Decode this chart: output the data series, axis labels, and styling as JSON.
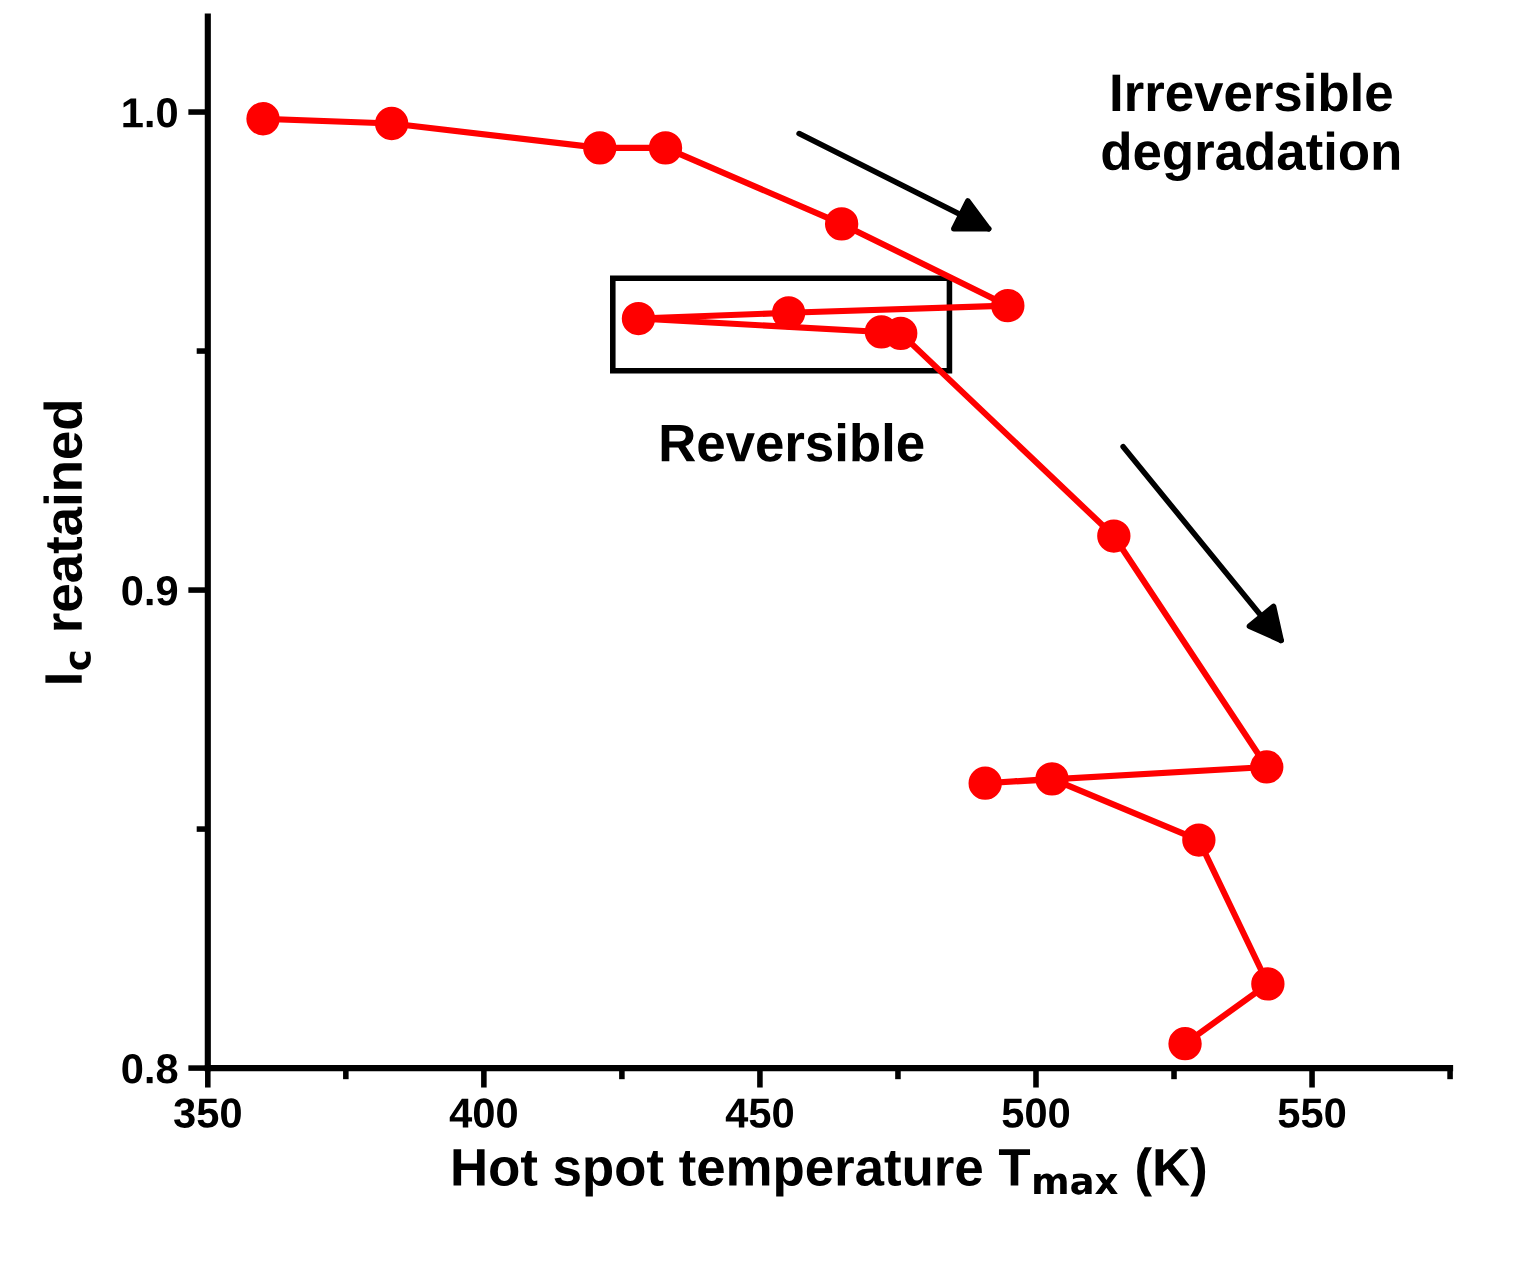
{
  "chart_data": {
    "type": "line",
    "xlabel": "Hot spot temperature T$_{max}$ (K)",
    "ylabel": "I$_{c}$ reatained",
    "x": [
      360.0,
      383.3,
      421.0,
      432.9,
      464.8,
      494.9,
      455.2,
      428.0,
      472.0,
      475.5,
      514.1,
      541.8,
      490.8,
      502.9,
      529.5,
      542.0,
      527.0
    ],
    "series": [
      {
        "color": "#ff0000",
        "values": [
          0.9986,
          0.9976,
          0.9925,
          0.9925,
          0.9766,
          0.9595,
          0.958,
          0.9568,
          0.954,
          0.9537,
          0.9113,
          0.863,
          0.8596,
          0.8605,
          0.8477,
          0.8176,
          0.8051
        ]
      }
    ],
    "xlim": [
      350,
      575
    ],
    "ylim": [
      0.8,
      1.02
    ],
    "xticks": [
      350,
      400,
      450,
      500,
      550
    ],
    "yticks": [
      {
        "value": 0.8,
        "label": "0.8"
      },
      {
        "value": 0.9,
        "label": "0.9"
      },
      {
        "value": 1.0,
        "label": "1.0"
      }
    ],
    "marker": "circle",
    "line_style": "solid",
    "grid": false,
    "legend": false,
    "annotations": [
      "Reversible",
      "Irreversible\ndegradation"
    ]
  }
}
